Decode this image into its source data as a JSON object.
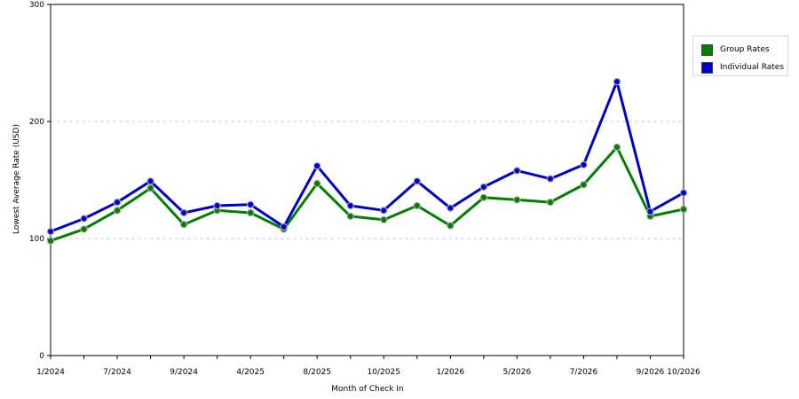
{
  "chart_data": {
    "type": "line",
    "title": "",
    "xlabel": "Month of Check In",
    "ylabel": "Lowest Average Rate (USD)",
    "ylim": [
      0,
      300
    ],
    "yticks": [
      0,
      100,
      200,
      300
    ],
    "grid": true,
    "legend_position": "right",
    "x_tick_labels": [
      "1/2024",
      "7/2024",
      "9/2024",
      "4/2025",
      "8/2025",
      "10/2025",
      "1/2026",
      "5/2026",
      "7/2026",
      "9/2026",
      "10/2026"
    ],
    "x_tick_indices": [
      0,
      2,
      4,
      6,
      8,
      10,
      12,
      14,
      16,
      18,
      19
    ],
    "series": [
      {
        "name": "Group Rates",
        "color": "#008000",
        "values": [
          98,
          108,
          124,
          143,
          112,
          124,
          122,
          108,
          147,
          119,
          116,
          128,
          111,
          135,
          133,
          131,
          146,
          178,
          119,
          125
        ]
      },
      {
        "name": "Individual Rates",
        "color": "#0000cc",
        "values": [
          106,
          117,
          131,
          149,
          122,
          128,
          129,
          110,
          162,
          128,
          124,
          149,
          126,
          144,
          158,
          151,
          163,
          234,
          123,
          139
        ]
      }
    ]
  }
}
